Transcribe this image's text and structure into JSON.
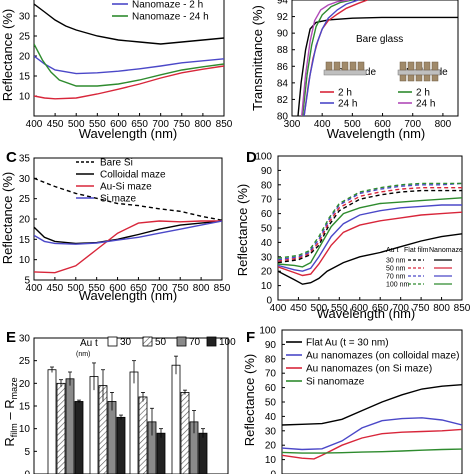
{
  "chart_data": [
    {
      "panel": "A",
      "type": "line",
      "panel_label": "",
      "xlabel": "Wavelength (nm)",
      "ylabel": "Reflectance (%)",
      "xlim": [
        400,
        850
      ],
      "ylim": [
        5,
        35
      ],
      "xticks": [
        400,
        450,
        500,
        550,
        600,
        650,
        700,
        750,
        800,
        850
      ],
      "yticks": [
        10,
        15,
        20,
        25,
        30
      ],
      "legend": [
        "Nanomaze - 2 h",
        "Nanomaze - 24 h"
      ],
      "series": [
        {
          "color": "#000000",
          "x": [
            400,
            425,
            450,
            475,
            500,
            550,
            600,
            650,
            700,
            750,
            800,
            850
          ],
          "y": [
            33,
            31,
            29,
            27.5,
            26.5,
            25,
            24,
            23.5,
            23,
            23.5,
            24,
            24.5
          ]
        },
        {
          "name": "Nanomaze - 2 h",
          "color": "#4b48c8",
          "x": [
            400,
            425,
            450,
            500,
            550,
            600,
            650,
            700,
            750,
            800,
            850
          ],
          "y": [
            20,
            18,
            16.5,
            15.6,
            15.8,
            16.2,
            16.8,
            17.5,
            18.3,
            18.8,
            19.3
          ]
        },
        {
          "name": "Nanomaze - 24 h",
          "color": "#2e8b2e",
          "x": [
            400,
            420,
            440,
            460,
            500,
            550,
            600,
            650,
            700,
            750,
            800,
            850
          ],
          "y": [
            23,
            19,
            16,
            14,
            12.5,
            12.5,
            13,
            14,
            15.3,
            16.5,
            17.3,
            18
          ]
        },
        {
          "color": "#d8263a",
          "x": [
            400,
            425,
            450,
            500,
            550,
            600,
            650,
            700,
            750,
            800,
            850
          ],
          "y": [
            10,
            9.5,
            9.3,
            9.5,
            10.5,
            11.7,
            13,
            14.5,
            15.8,
            16.7,
            17.5
          ]
        }
      ]
    },
    {
      "panel": "B",
      "type": "line",
      "panel_label": "",
      "xlabel": "Wavelength (nm)",
      "ylabel": "Transmittance (%)",
      "xlim": [
        300,
        850
      ],
      "ylim": [
        80,
        94
      ],
      "xticks": [
        300,
        400,
        500,
        600,
        700,
        800
      ],
      "yticks": [
        80,
        82,
        84,
        86,
        88,
        90,
        92,
        94
      ],
      "annotations": [
        "Bare glass",
        "One side",
        "Both side"
      ],
      "legend": [
        "2 h",
        "24 h",
        "2 h",
        "24 h"
      ],
      "series": [
        {
          "name": "Bare glass",
          "color": "#000000",
          "x": [
            320,
            330,
            345,
            360,
            380,
            420,
            500,
            600,
            700,
            800,
            850
          ],
          "y": [
            80,
            84,
            88,
            90.5,
            91.3,
            91.6,
            91.8,
            91.9,
            91.9,
            91.9,
            91.9
          ]
        },
        {
          "name": "2 h",
          "color": "#d8263a",
          "x": [
            340,
            355,
            370,
            385,
            400,
            420,
            450,
            480,
            520,
            550
          ],
          "y": [
            80,
            84,
            87,
            89,
            90.5,
            91.5,
            92.3,
            93,
            93.6,
            94
          ]
        },
        {
          "name": "24 h",
          "color": "#4b48c8",
          "x": [
            340,
            360,
            380,
            400,
            420,
            450,
            480,
            520
          ],
          "y": [
            80,
            85,
            88.5,
            90.5,
            91.8,
            92.8,
            93.5,
            94
          ]
        },
        {
          "name": "2 h",
          "color": "#2e8b2e",
          "x": [
            335,
            350,
            365,
            380,
            400,
            430,
            460,
            500
          ],
          "y": [
            80,
            85,
            88.5,
            90.8,
            92.2,
            93.2,
            93.7,
            94
          ]
        },
        {
          "name": "24 h",
          "color": "#b04ab8",
          "x": [
            332,
            345,
            360,
            375,
            395,
            420,
            450,
            490
          ],
          "y": [
            80,
            85,
            89,
            91.5,
            92.8,
            93.4,
            93.8,
            94
          ]
        }
      ]
    },
    {
      "panel": "C",
      "type": "line",
      "panel_label": "C",
      "xlabel": "Wavelength (nm)",
      "ylabel": "Reflectance (%)",
      "xlim": [
        400,
        850
      ],
      "ylim": [
        5,
        35
      ],
      "xticks": [
        400,
        450,
        500,
        550,
        600,
        650,
        700,
        750,
        800,
        850
      ],
      "yticks": [
        5,
        10,
        15,
        20,
        25,
        30,
        35
      ],
      "legend": [
        "Bare Si",
        "Colloidal maze",
        "Au-Si maze",
        "Si maze"
      ],
      "series": [
        {
          "name": "Bare Si",
          "color": "#000000",
          "dash": "4,3",
          "x": [
            400,
            450,
            500,
            550,
            600,
            650,
            700,
            750,
            800,
            850
          ],
          "y": [
            30,
            28,
            26.3,
            25.1,
            23.8,
            23.3,
            22.5,
            21.9,
            20.7,
            19.7
          ]
        },
        {
          "name": "Colloidal maze",
          "color": "#000000",
          "x": [
            400,
            425,
            450,
            500,
            550,
            600,
            650,
            700,
            750,
            800,
            850
          ],
          "y": [
            18,
            15.5,
            14.5,
            14,
            14.2,
            15,
            16.2,
            17.5,
            18.5,
            19,
            19.5
          ]
        },
        {
          "name": "Au-Si maze",
          "color": "#d8263a",
          "x": [
            400,
            450,
            500,
            550,
            600,
            650,
            700,
            750,
            800,
            850
          ],
          "y": [
            7,
            6.8,
            8.5,
            12.5,
            16.5,
            19,
            19.5,
            19.3,
            19.5,
            19.5
          ]
        },
        {
          "name": "Si maze",
          "color": "#4b48c8",
          "x": [
            400,
            425,
            450,
            500,
            550,
            600,
            650,
            700,
            750,
            800,
            850
          ],
          "y": [
            16,
            14.5,
            14,
            13.8,
            14.1,
            14.8,
            15.5,
            16.5,
            17.5,
            18.5,
            19.5
          ]
        }
      ]
    },
    {
      "panel": "D",
      "type": "line",
      "panel_label": "D",
      "xlabel": "Wavelength (nm)",
      "ylabel": "Reflectance (%)",
      "xlim": [
        400,
        850
      ],
      "ylim": [
        0,
        100
      ],
      "xticks": [
        400,
        450,
        500,
        550,
        600,
        650,
        700,
        750,
        800,
        850
      ],
      "yticks": [
        0,
        10,
        20,
        30,
        40,
        50,
        60,
        70,
        80,
        90,
        100
      ],
      "legend_title": "Au t",
      "legend_cols": [
        "Flat film",
        "Nanomaze"
      ],
      "legend_rows": [
        "30 nm",
        "50 nm",
        "70 nm",
        "100 nm"
      ],
      "series": [
        {
          "name": "30 nm",
          "color": "#000000",
          "dash": "4,3",
          "x": [
            400,
            450,
            475,
            500,
            525,
            550,
            600,
            650,
            700,
            750,
            800,
            850
          ],
          "y": [
            26,
            28,
            31,
            38,
            52,
            62,
            70,
            73,
            75,
            76,
            76,
            76
          ]
        },
        {
          "name": "50 nm",
          "color": "#d8263a",
          "dash": "4,3",
          "x": [
            400,
            450,
            475,
            500,
            525,
            550,
            600,
            650,
            700,
            750,
            800,
            850
          ],
          "y": [
            27,
            29,
            32,
            40,
            54,
            64,
            72,
            75,
            77,
            78,
            78,
            78
          ]
        },
        {
          "name": "70 nm",
          "color": "#4b48c8",
          "dash": "4,3",
          "x": [
            400,
            450,
            475,
            500,
            525,
            550,
            600,
            650,
            700,
            750,
            800,
            850
          ],
          "y": [
            28,
            30,
            33,
            42,
            56,
            66,
            74,
            77,
            79,
            80,
            80,
            81
          ]
        },
        {
          "name": "100 nm",
          "color": "#2e8b2e",
          "dash": "4,3",
          "x": [
            400,
            450,
            475,
            500,
            525,
            550,
            600,
            650,
            700,
            750,
            800,
            850
          ],
          "y": [
            29,
            31,
            34,
            44,
            57,
            67,
            75,
            78,
            80,
            81,
            81,
            81
          ]
        },
        {
          "name": "30 nm",
          "color": "#000000",
          "x": [
            400,
            440,
            460,
            480,
            500,
            520,
            560,
            600,
            650,
            700,
            750,
            800,
            850
          ],
          "y": [
            20,
            14,
            11,
            12,
            15,
            20,
            26,
            30,
            33,
            37,
            41,
            44,
            46
          ]
        },
        {
          "name": "50 nm",
          "color": "#d8263a",
          "x": [
            400,
            440,
            460,
            480,
            500,
            530,
            560,
            600,
            650,
            700,
            750,
            800,
            850
          ],
          "y": [
            23,
            19,
            17,
            18,
            25,
            38,
            47,
            52,
            55,
            57,
            59,
            60,
            61
          ]
        },
        {
          "name": "70 nm",
          "color": "#4b48c8",
          "x": [
            400,
            440,
            460,
            480,
            500,
            530,
            560,
            600,
            650,
            700,
            750,
            800,
            850
          ],
          "y": [
            24,
            21,
            20,
            22,
            30,
            44,
            53,
            59,
            62,
            64,
            65,
            66,
            66
          ]
        },
        {
          "name": "100 nm",
          "color": "#2e8b2e",
          "x": [
            400,
            440,
            460,
            480,
            500,
            530,
            560,
            600,
            650,
            700,
            750,
            800,
            850
          ],
          "y": [
            25,
            24,
            23,
            26,
            36,
            51,
            60,
            64,
            67,
            68,
            69,
            70,
            71
          ]
        }
      ]
    },
    {
      "panel": "E",
      "type": "bar",
      "panel_label": "E",
      "xlabel": "",
      "ylabel": "R",
      "ylim": [
        0,
        30
      ],
      "yticks": [
        0,
        5,
        10,
        15,
        20,
        25,
        30
      ],
      "legend_title": "Au t",
      "legend_unit": "(nm)",
      "series": [
        {
          "name": "30",
          "fill": "#ffffff",
          "values": [
            23,
            21.5,
            22.5,
            24
          ]
        },
        {
          "name": "50",
          "fill": "#c8c8c8",
          "values": [
            20,
            19.5,
            17,
            18
          ]
        },
        {
          "name": "70",
          "fill": "#8a8a8a",
          "values": [
            21,
            16,
            11.5,
            11.5
          ]
        },
        {
          "name": "100",
          "fill": "#222222",
          "values": [
            16,
            12.5,
            9,
            9
          ]
        }
      ],
      "errors": [
        [
          0.6,
          3,
          2.5,
          2
        ],
        [
          0.8,
          3.5,
          1,
          0.5
        ],
        [
          1.5,
          2,
          3,
          2.5
        ],
        [
          0.3,
          0.5,
          1,
          1
        ]
      ]
    },
    {
      "panel": "F",
      "type": "line",
      "panel_label": "F",
      "xlabel": "",
      "ylabel": "Reflectance (%)",
      "xlim": [
        400,
        850
      ],
      "ylim": [
        0,
        100
      ],
      "yticks": [
        0,
        10,
        20,
        30,
        40,
        50,
        60,
        70,
        80,
        90,
        100
      ],
      "legend": [
        "Flat Au (t = 30 nm)",
        "Au nanomazes (on colloidal maze)",
        "Au nanomazes (on Si maze)",
        "Si nanomaze"
      ],
      "series": [
        {
          "name": "Flat Au (t = 30 nm)",
          "color": "#000000",
          "x": [
            400,
            450,
            500,
            550,
            600,
            650,
            700,
            750,
            800,
            850
          ],
          "y": [
            34,
            34.5,
            35,
            38,
            44,
            50,
            55,
            59,
            61,
            62
          ]
        },
        {
          "name": "Au nanomazes (on colloidal maze)",
          "color": "#4b48c8",
          "x": [
            400,
            450,
            500,
            550,
            600,
            650,
            700,
            750,
            800,
            850
          ],
          "y": [
            18,
            17,
            17.5,
            23,
            32,
            37,
            38.5,
            39,
            37.5,
            34
          ]
        },
        {
          "name": "Au nanomazes (on Si maze)",
          "color": "#d8263a",
          "x": [
            400,
            450,
            480,
            500,
            550,
            600,
            650,
            700,
            750,
            800,
            850
          ],
          "y": [
            13,
            11,
            10.5,
            13,
            20,
            25,
            28,
            29,
            29.5,
            30,
            31
          ]
        },
        {
          "name": "Si nanomaze",
          "color": "#2e8b2e",
          "x": [
            400,
            450,
            500,
            550,
            600,
            650,
            700,
            750,
            800,
            850
          ],
          "y": [
            15,
            14.5,
            14.5,
            14.8,
            15.2,
            15.5,
            16,
            16.5,
            17,
            17.3
          ]
        }
      ]
    }
  ]
}
